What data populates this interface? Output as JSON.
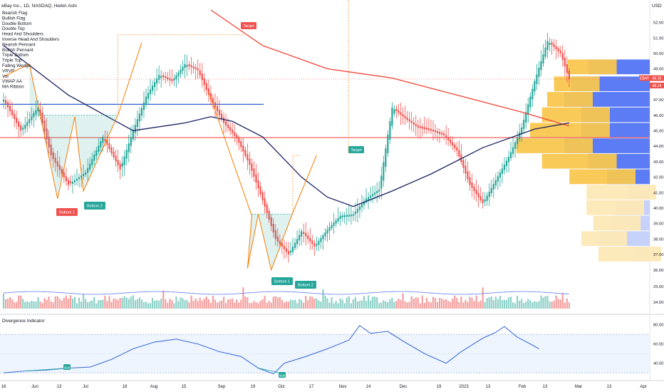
{
  "header": {
    "title": "eBay Inc., 1D, NASDAQ, Heikin Ashi",
    "currency": "USD"
  },
  "indicators": [
    "Bearish Flag",
    "Bullish Flag",
    "Double Bottom",
    "Double Top",
    "Head And Shoulders",
    "Inverse Head And Shoulders",
    "Bearish Pennant",
    "Bullish Pennant",
    "Triple Bottom",
    "Triple Top",
    "Falling Wedge",
    "VRVP",
    "Vol",
    "VWAP AA",
    "MA Ribbon"
  ],
  "badges": {
    "target": "Target",
    "bottom1": "Bottom 1",
    "bottom2": "Bottom 2",
    "bull": "Bull"
  },
  "price_tags": {
    "ticker": "EBAY",
    "last": "48.35",
    "second": "48.24"
  },
  "volume_axis": [
    "25.00",
    "34.00"
  ],
  "oscillator": {
    "title": "Divergence Indicator",
    "ticks": [
      "80.00",
      "60.00",
      "40.00"
    ],
    "ylim": [
      25,
      87
    ],
    "band": [
      30,
      70
    ]
  },
  "x_axis": {
    "labels": [
      "16",
      "Jun",
      "13",
      "Jul",
      "18",
      "Aug",
      "15",
      "Sep",
      "19",
      "Oct",
      "17",
      "Nov",
      "14",
      "Dec",
      "19",
      "2023",
      "13",
      "Feb",
      "13",
      "Mar",
      "13",
      "Apr"
    ]
  },
  "colors": {
    "up": "#26a69a",
    "down": "#ef5350",
    "ma_red": "#f44336",
    "ma_navy": "#1a2260",
    "pattern": "#f57c00",
    "vp_up": "#f9c74f",
    "vp_down": "#5b7cf5",
    "osc": "#3f6fd8"
  },
  "chart_data": {
    "type": "candlestick",
    "title": "eBay Inc., 1D, NASDAQ, Heikin Ashi",
    "ylabel": "USD",
    "ylim": [
      35.8,
      52.8
    ],
    "y_ticks": [
      "52.00",
      "51.00",
      "50.00",
      "49.00",
      "48.00",
      "47.00",
      "46.00",
      "45.00",
      "44.00",
      "43.00",
      "42.00",
      "41.00",
      "40.00",
      "39.00",
      "38.00",
      "37.00",
      "36.00"
    ],
    "x_labels": [
      "16",
      "Jun",
      "13",
      "Jul",
      "18",
      "Aug",
      "15",
      "Sep",
      "19",
      "Oct",
      "17",
      "Nov",
      "14",
      "Dec",
      "19",
      "2023",
      "13",
      "Feb",
      "13",
      "Mar",
      "13",
      "Apr"
    ],
    "close_anchors": [
      [
        0,
        47.0
      ],
      [
        8,
        45.0
      ],
      [
        16,
        46.5
      ],
      [
        22,
        43.4
      ],
      [
        30,
        41.5
      ],
      [
        38,
        42.3
      ],
      [
        46,
        44.6
      ],
      [
        54,
        42.5
      ],
      [
        60,
        45.0
      ],
      [
        66,
        47.2
      ],
      [
        72,
        48.6
      ],
      [
        78,
        48.2
      ],
      [
        84,
        49.3
      ],
      [
        90,
        48.9
      ],
      [
        96,
        47.0
      ],
      [
        102,
        45.5
      ],
      [
        108,
        44.5
      ],
      [
        114,
        42.8
      ],
      [
        120,
        40.5
      ],
      [
        126,
        38.0
      ],
      [
        132,
        37.0
      ],
      [
        138,
        38.5
      ],
      [
        144,
        37.5
      ],
      [
        150,
        38.6
      ],
      [
        156,
        39.5
      ],
      [
        162,
        39.6
      ],
      [
        168,
        40.6
      ],
      [
        174,
        41.2
      ],
      [
        180,
        46.5
      ],
      [
        186,
        45.8
      ],
      [
        192,
        45.2
      ],
      [
        198,
        45.0
      ],
      [
        204,
        44.7
      ],
      [
        210,
        43.7
      ],
      [
        216,
        41.5
      ],
      [
        222,
        40.3
      ],
      [
        228,
        41.8
      ],
      [
        234,
        43.3
      ],
      [
        240,
        45.2
      ],
      [
        246,
        48.2
      ],
      [
        252,
        50.8
      ],
      [
        258,
        50.0
      ],
      [
        262,
        48.3
      ]
    ],
    "series": [
      {
        "name": "MA (red)",
        "values": [
          [
            96,
            52.8
          ],
          [
            120,
            50.5
          ],
          [
            150,
            49.0
          ],
          [
            180,
            48.4
          ],
          [
            210,
            47.3
          ],
          [
            240,
            46.2
          ],
          [
            262,
            45.3
          ]
        ]
      },
      {
        "name": "MA (navy)",
        "values": [
          [
            0,
            50.5
          ],
          [
            30,
            47.3
          ],
          [
            60,
            45.0
          ],
          [
            84,
            45.5
          ],
          [
            96,
            45.9
          ],
          [
            106,
            45.6
          ],
          [
            120,
            44.6
          ],
          [
            138,
            42.0
          ],
          [
            150,
            40.7
          ],
          [
            162,
            40.1
          ],
          [
            180,
            41.1
          ],
          [
            198,
            42.2
          ],
          [
            222,
            43.9
          ],
          [
            246,
            45.1
          ],
          [
            262,
            45.5
          ]
        ]
      }
    ],
    "horizontal_levels": [
      {
        "value": 46.7,
        "color": "blue"
      },
      {
        "value": 44.55,
        "color": "red"
      },
      {
        "value": 48.33,
        "color": "red",
        "style": "dotted"
      }
    ],
    "patterns": [
      {
        "label": "Double Bottom",
        "points": [
          [
            0,
            48.5
          ],
          [
            12,
            49.3
          ],
          [
            25,
            40.6
          ],
          [
            33,
            45.9
          ],
          [
            37,
            41.1
          ],
          [
            53,
            46.0
          ],
          [
            64,
            50.7
          ]
        ],
        "neckline": 46.0,
        "target": 51.2
      },
      {
        "label": "Double Bottom",
        "points": [
          [
            95,
            47.5
          ],
          [
            115,
            39.5
          ],
          [
            113,
            36.1
          ],
          [
            118,
            39.6
          ],
          [
            124,
            36.0
          ],
          [
            134,
            39.7
          ],
          [
            145,
            43.4
          ]
        ],
        "neckline": 39.6,
        "target": 43.4
      }
    ],
    "volume_profile": [
      {
        "price": 49.1,
        "up": 0.48,
        "down": 0.36
      },
      {
        "price": 48.0,
        "up": 0.56,
        "down": 0.46
      },
      {
        "price": 47.0,
        "up": 0.6,
        "down": 0.5
      },
      {
        "price": 46.0,
        "up": 0.63,
        "down": 0.4
      },
      {
        "price": 45.0,
        "up": 0.7,
        "down": 0.4
      },
      {
        "price": 44.0,
        "up": 0.78,
        "down": 0.5
      },
      {
        "price": 43.0,
        "up": 0.63,
        "down": 0.36
      },
      {
        "price": 42.0,
        "up": 0.47,
        "down": 0.25
      },
      {
        "price": 41.0,
        "up": 0.37,
        "down": 0.13
      },
      {
        "price": 40.0,
        "up": 0.37,
        "down": 0.2
      },
      {
        "price": 39.0,
        "up": 0.33,
        "down": 0.22
      },
      {
        "price": 38.0,
        "up": 0.4,
        "down": 0.3
      },
      {
        "price": 37.0,
        "up": 0.3,
        "down": 0.1
      }
    ],
    "oscillator": {
      "name": "Divergence Indicator",
      "values": [
        [
          0,
          30
        ],
        [
          10,
          32
        ],
        [
          20,
          33
        ],
        [
          30,
          35
        ],
        [
          40,
          36
        ],
        [
          50,
          44
        ],
        [
          60,
          55
        ],
        [
          70,
          62
        ],
        [
          80,
          65
        ],
        [
          90,
          60
        ],
        [
          100,
          52
        ],
        [
          110,
          47
        ],
        [
          118,
          35
        ],
        [
          125,
          29
        ],
        [
          130,
          40
        ],
        [
          140,
          47
        ],
        [
          150,
          55
        ],
        [
          160,
          64
        ],
        [
          165,
          79
        ],
        [
          170,
          71
        ],
        [
          178,
          73
        ],
        [
          185,
          63
        ],
        [
          195,
          50
        ],
        [
          205,
          40
        ],
        [
          212,
          52
        ],
        [
          222,
          66
        ],
        [
          228,
          72
        ],
        [
          232,
          78
        ],
        [
          238,
          67
        ],
        [
          244,
          60
        ],
        [
          248,
          55
        ]
      ]
    }
  }
}
